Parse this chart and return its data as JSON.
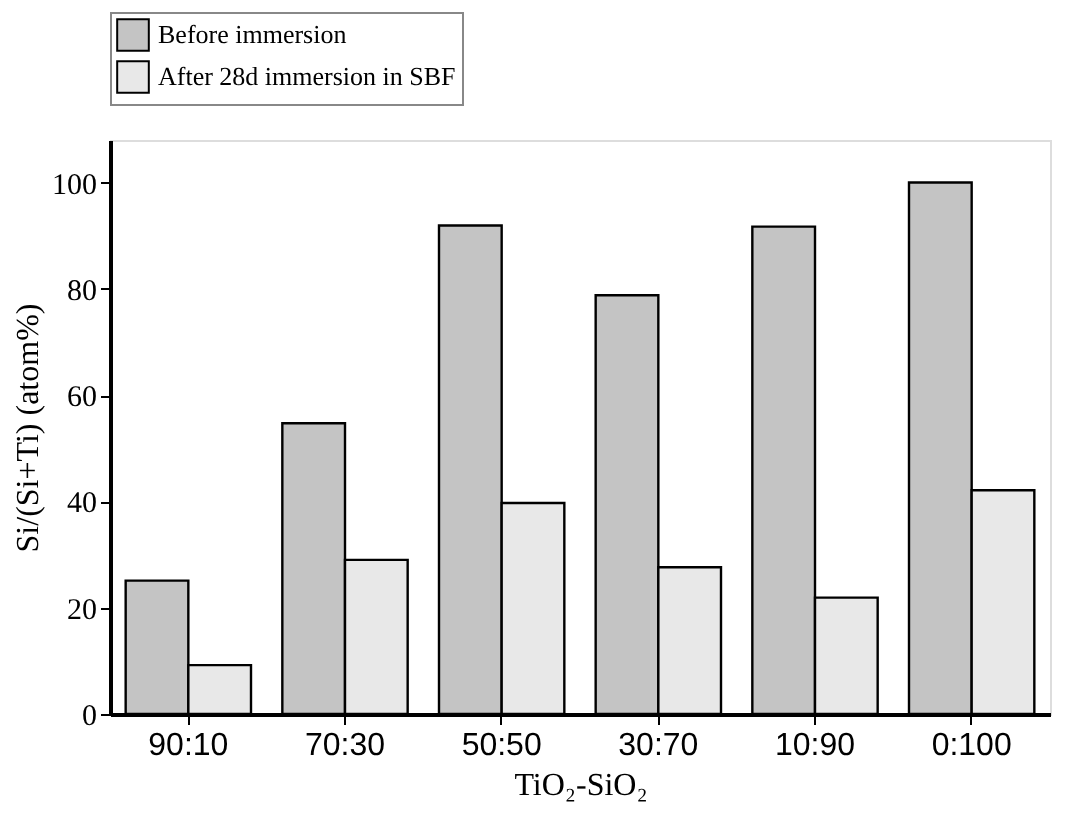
{
  "chart_data": {
    "type": "bar",
    "xlabel": "TiO₂-SiO₂",
    "ylabel": "Si/(Si+Ti) (atom%)",
    "categories": [
      "90:10",
      "70:30",
      "50:50",
      "30:70",
      "10:90",
      "0:100"
    ],
    "series": [
      {
        "name": "Before immersion",
        "color": "#c4c4c4",
        "values": [
          25.1,
          54.7,
          91.9,
          78.8,
          91.7,
          100
        ]
      },
      {
        "name": "After 28d immersion in SBF",
        "color": "#e8e8e8",
        "values": [
          9.2,
          29.0,
          39.7,
          27.6,
          21.9,
          42.1
        ]
      }
    ],
    "ylim": [
      0,
      108
    ],
    "yticks": [
      0,
      20,
      40,
      60,
      80,
      100
    ],
    "grid": false,
    "legend": "top"
  }
}
